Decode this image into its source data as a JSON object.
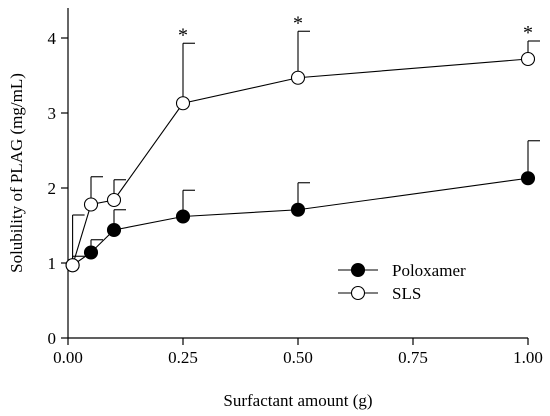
{
  "chart_data": {
    "type": "scatter",
    "xlabel": "Surfactant amount (g)",
    "ylabel": "Solubility of PLAG (mg/mL)",
    "xlim": [
      0,
      1
    ],
    "ylim": [
      0,
      4.4
    ],
    "x_ticks": [
      "0.00",
      "0.25",
      "0.50",
      "0.75",
      "1.00"
    ],
    "x_tick_values": [
      0,
      0.25,
      0.5,
      0.75,
      1
    ],
    "y_ticks": [
      "0",
      "1",
      "2",
      "3",
      "4"
    ],
    "y_tick_values": [
      0,
      1,
      2,
      3,
      4
    ],
    "grid": false,
    "legend_position": "lower-right",
    "series": [
      {
        "name": "Poloxamer",
        "marker": "filled-circle",
        "color": "#000000",
        "x": [
          0.01,
          0.05,
          0.1,
          0.25,
          0.5,
          1.0
        ],
        "y": [
          0.97,
          1.14,
          1.44,
          1.62,
          1.71,
          2.13
        ],
        "error_plus": [
          0.12,
          0.17,
          0.27,
          0.35,
          0.36,
          0.5
        ]
      },
      {
        "name": "SLS",
        "marker": "open-circle",
        "color": "#000000",
        "x": [
          0.01,
          0.05,
          0.1,
          0.25,
          0.5,
          1.0
        ],
        "y": [
          0.97,
          1.78,
          1.84,
          3.13,
          3.47,
          3.72
        ],
        "error_plus": [
          0.67,
          0.37,
          0.27,
          0.8,
          0.62,
          0.24
        ]
      }
    ],
    "annotations": [
      {
        "text": "*",
        "x": 0.25,
        "series": "SLS"
      },
      {
        "text": "*",
        "x": 0.5,
        "series": "SLS"
      },
      {
        "text": "*",
        "x": 1.0,
        "series": "SLS"
      }
    ]
  }
}
